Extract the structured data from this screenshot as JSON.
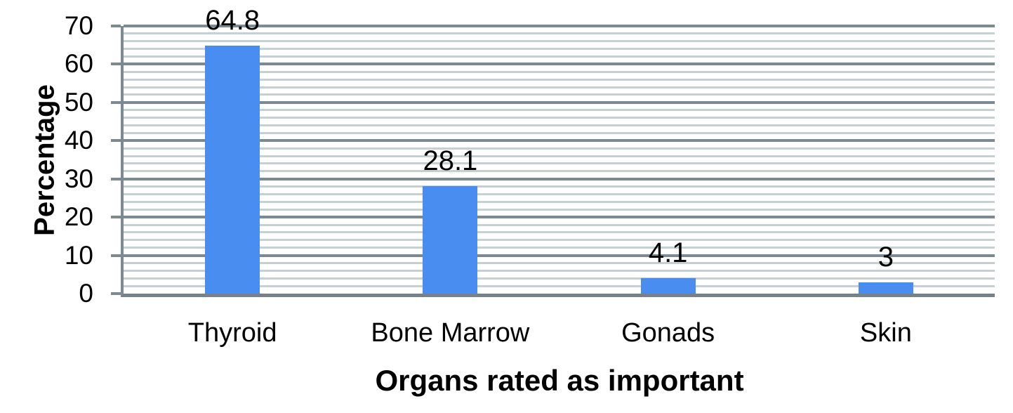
{
  "chart_data": {
    "type": "bar",
    "title": "",
    "categories": [
      "Thyroid",
      "Bone Marrow",
      "Gonads",
      "Skin"
    ],
    "values": [
      64.8,
      28.1,
      4.1,
      3
    ],
    "data_labels": [
      "64.8",
      "28.1",
      "4.1",
      "3"
    ],
    "xlabel": "Organs rated as important",
    "ylabel": "Percentage",
    "ylim": [
      0,
      70
    ],
    "y_ticks": [
      0,
      10,
      20,
      30,
      40,
      50,
      60,
      70
    ],
    "y_tick_labels": [
      "0",
      "10",
      "20",
      "30",
      "40",
      "50",
      "60",
      "70"
    ],
    "y_minor_grid_interval": 2,
    "grid": "horizontal-major-and-minor",
    "legend": "none",
    "colors": {
      "bar": "#4a8df0",
      "major_grid": "#7d8a91",
      "minor_grid": "#c6d0d3",
      "axis": "#75828a",
      "text": "#000000",
      "background": "#ffffff"
    }
  }
}
